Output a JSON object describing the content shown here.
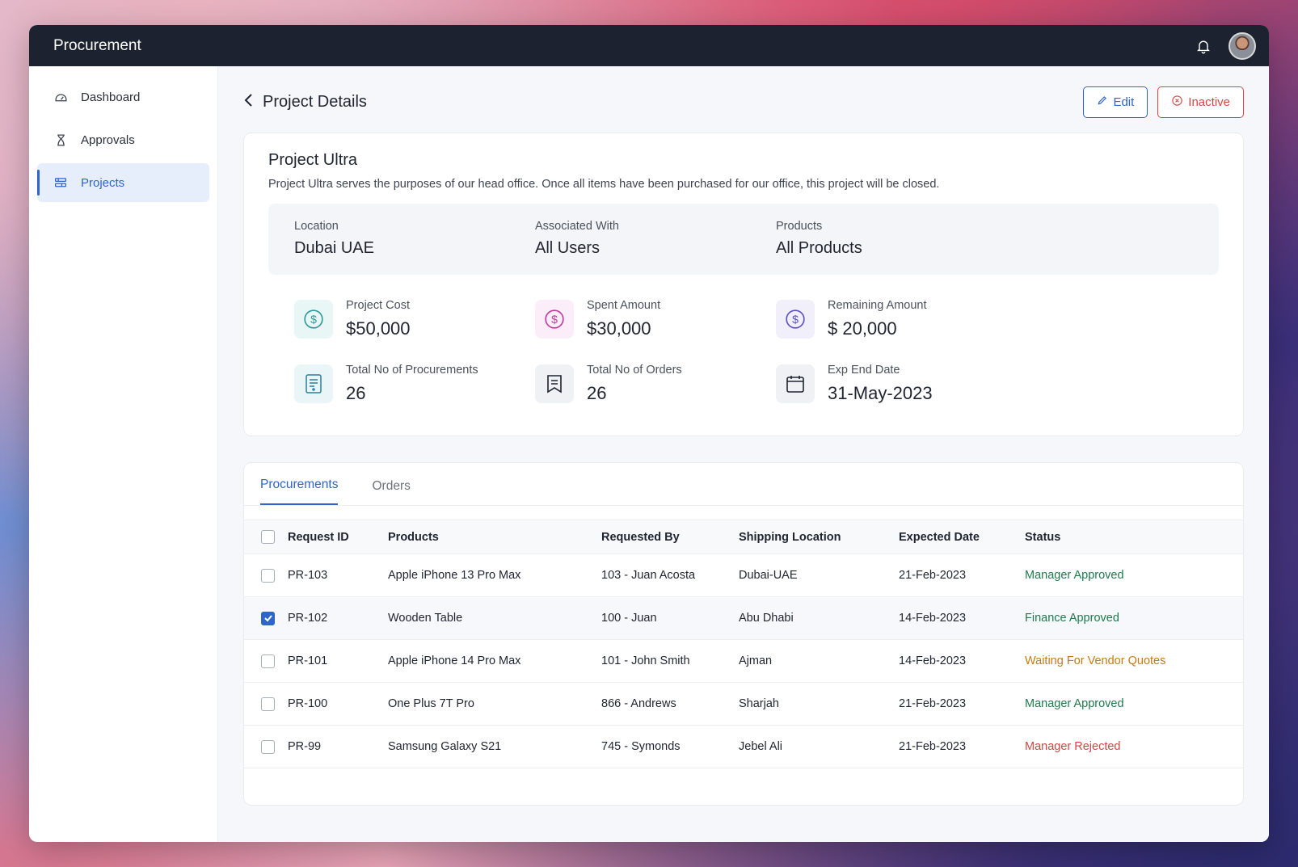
{
  "app": {
    "title": "Procurement"
  },
  "colors": {
    "accent": "#2f64c8",
    "danger": "#d64545",
    "topbar": "#1c2230",
    "approved": "#1f7a4d",
    "waiting": "#c57b12"
  },
  "sidebar": {
    "items": [
      {
        "label": "Dashboard",
        "icon": "gauge-icon",
        "active": false
      },
      {
        "label": "Approvals",
        "icon": "hourglass-icon",
        "active": false
      },
      {
        "label": "Projects",
        "icon": "projects-icon",
        "active": true
      }
    ]
  },
  "page": {
    "title": "Project Details",
    "edit_label": "Edit",
    "inactive_label": "Inactive"
  },
  "project": {
    "name": "Project Ultra",
    "description": "Project Ultra serves the purposes of our head office. Once all items have been purchased for our office, this project will be closed.",
    "info": [
      {
        "label": "Location",
        "value": "Dubai UAE"
      },
      {
        "label": "Associated With",
        "value": "All Users"
      },
      {
        "label": "Products",
        "value": "All Products"
      }
    ],
    "stats": [
      {
        "label": "Project Cost",
        "value": "$50,000",
        "icon": "dollar-icon"
      },
      {
        "label": "Spent Amount",
        "value": "$30,000",
        "icon": "dollar-icon"
      },
      {
        "label": "Remaining Amount",
        "value": "$ 20,000",
        "icon": "dollar-icon"
      },
      {
        "label": "Total No of Procurements",
        "value": "26",
        "icon": "document-icon"
      },
      {
        "label": "Total No of Orders",
        "value": "26",
        "icon": "receipt-icon"
      },
      {
        "label": "Exp End Date",
        "value": "31-May-2023",
        "icon": "calendar-icon"
      }
    ]
  },
  "tabs": [
    {
      "label": "Procurements",
      "active": true
    },
    {
      "label": "Orders",
      "active": false
    }
  ],
  "table": {
    "columns": [
      "Request ID",
      "Products",
      "Requested By",
      "Shipping Location",
      "Expected  Date",
      "Status"
    ],
    "rows": [
      {
        "id": "PR-103",
        "product": "Apple iPhone 13 Pro Max",
        "requested_by": "103 - Juan Acosta",
        "location": "Dubai-UAE",
        "date": "21-Feb-2023",
        "status": "Manager Approved",
        "status_type": "green",
        "checked": false
      },
      {
        "id": "PR-102",
        "product": "Wooden Table",
        "requested_by": "100 - Juan",
        "location": "Abu Dhabi",
        "date": "14-Feb-2023",
        "status": "Finance Approved",
        "status_type": "green",
        "checked": true
      },
      {
        "id": "PR-101",
        "product": "Apple iPhone 14 Pro Max",
        "requested_by": "101 - John Smith",
        "location": "Ajman",
        "date": "14-Feb-2023",
        "status": "Waiting For Vendor Quotes",
        "status_type": "orange",
        "checked": false
      },
      {
        "id": "PR-100",
        "product": "One Plus 7T Pro",
        "requested_by": "866 - Andrews",
        "location": "Sharjah",
        "date": "21-Feb-2023",
        "status": "Manager Approved",
        "status_type": "green",
        "checked": false
      },
      {
        "id": "PR-99",
        "product": "Samsung Galaxy S21",
        "requested_by": "745 - Symonds",
        "location": "Jebel Ali",
        "date": "21-Feb-2023",
        "status": "Manager Rejected",
        "status_type": "red",
        "checked": false
      }
    ]
  }
}
